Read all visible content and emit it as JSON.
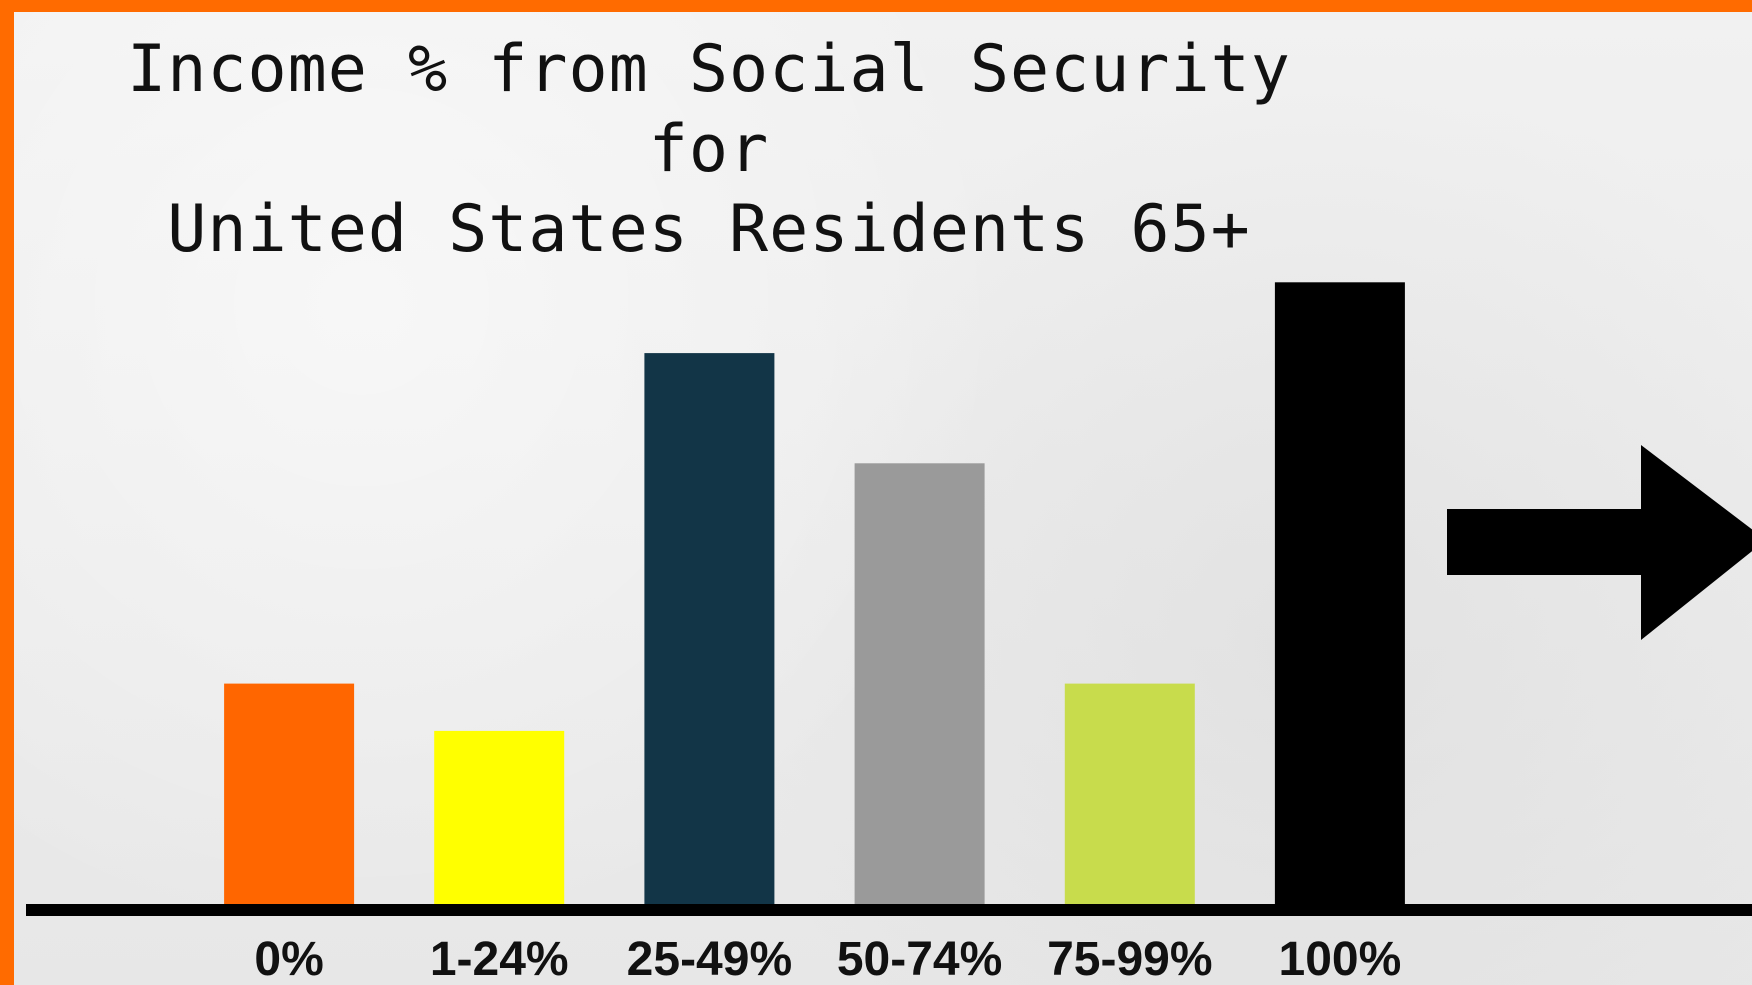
{
  "chart_data": {
    "type": "bar",
    "title_line1": "Income % from Social Security for",
    "title_line2": "United States Residents 65+",
    "xlabel": "",
    "ylabel": "",
    "categories": [
      "0%",
      "1-24%",
      "25-49%",
      "50-74%",
      "75-99%",
      "100%"
    ],
    "values": [
      28,
      22,
      70,
      56,
      28,
      79
    ],
    "colors": [
      "#ff6600",
      "#ffff00",
      "#123547",
      "#9a9a9a",
      "#c8dc4c",
      "#000000"
    ],
    "ylim": [
      0,
      100
    ],
    "grid": false,
    "legend": "none",
    "annotation": "right-arrow pointing from the 100% bar"
  }
}
